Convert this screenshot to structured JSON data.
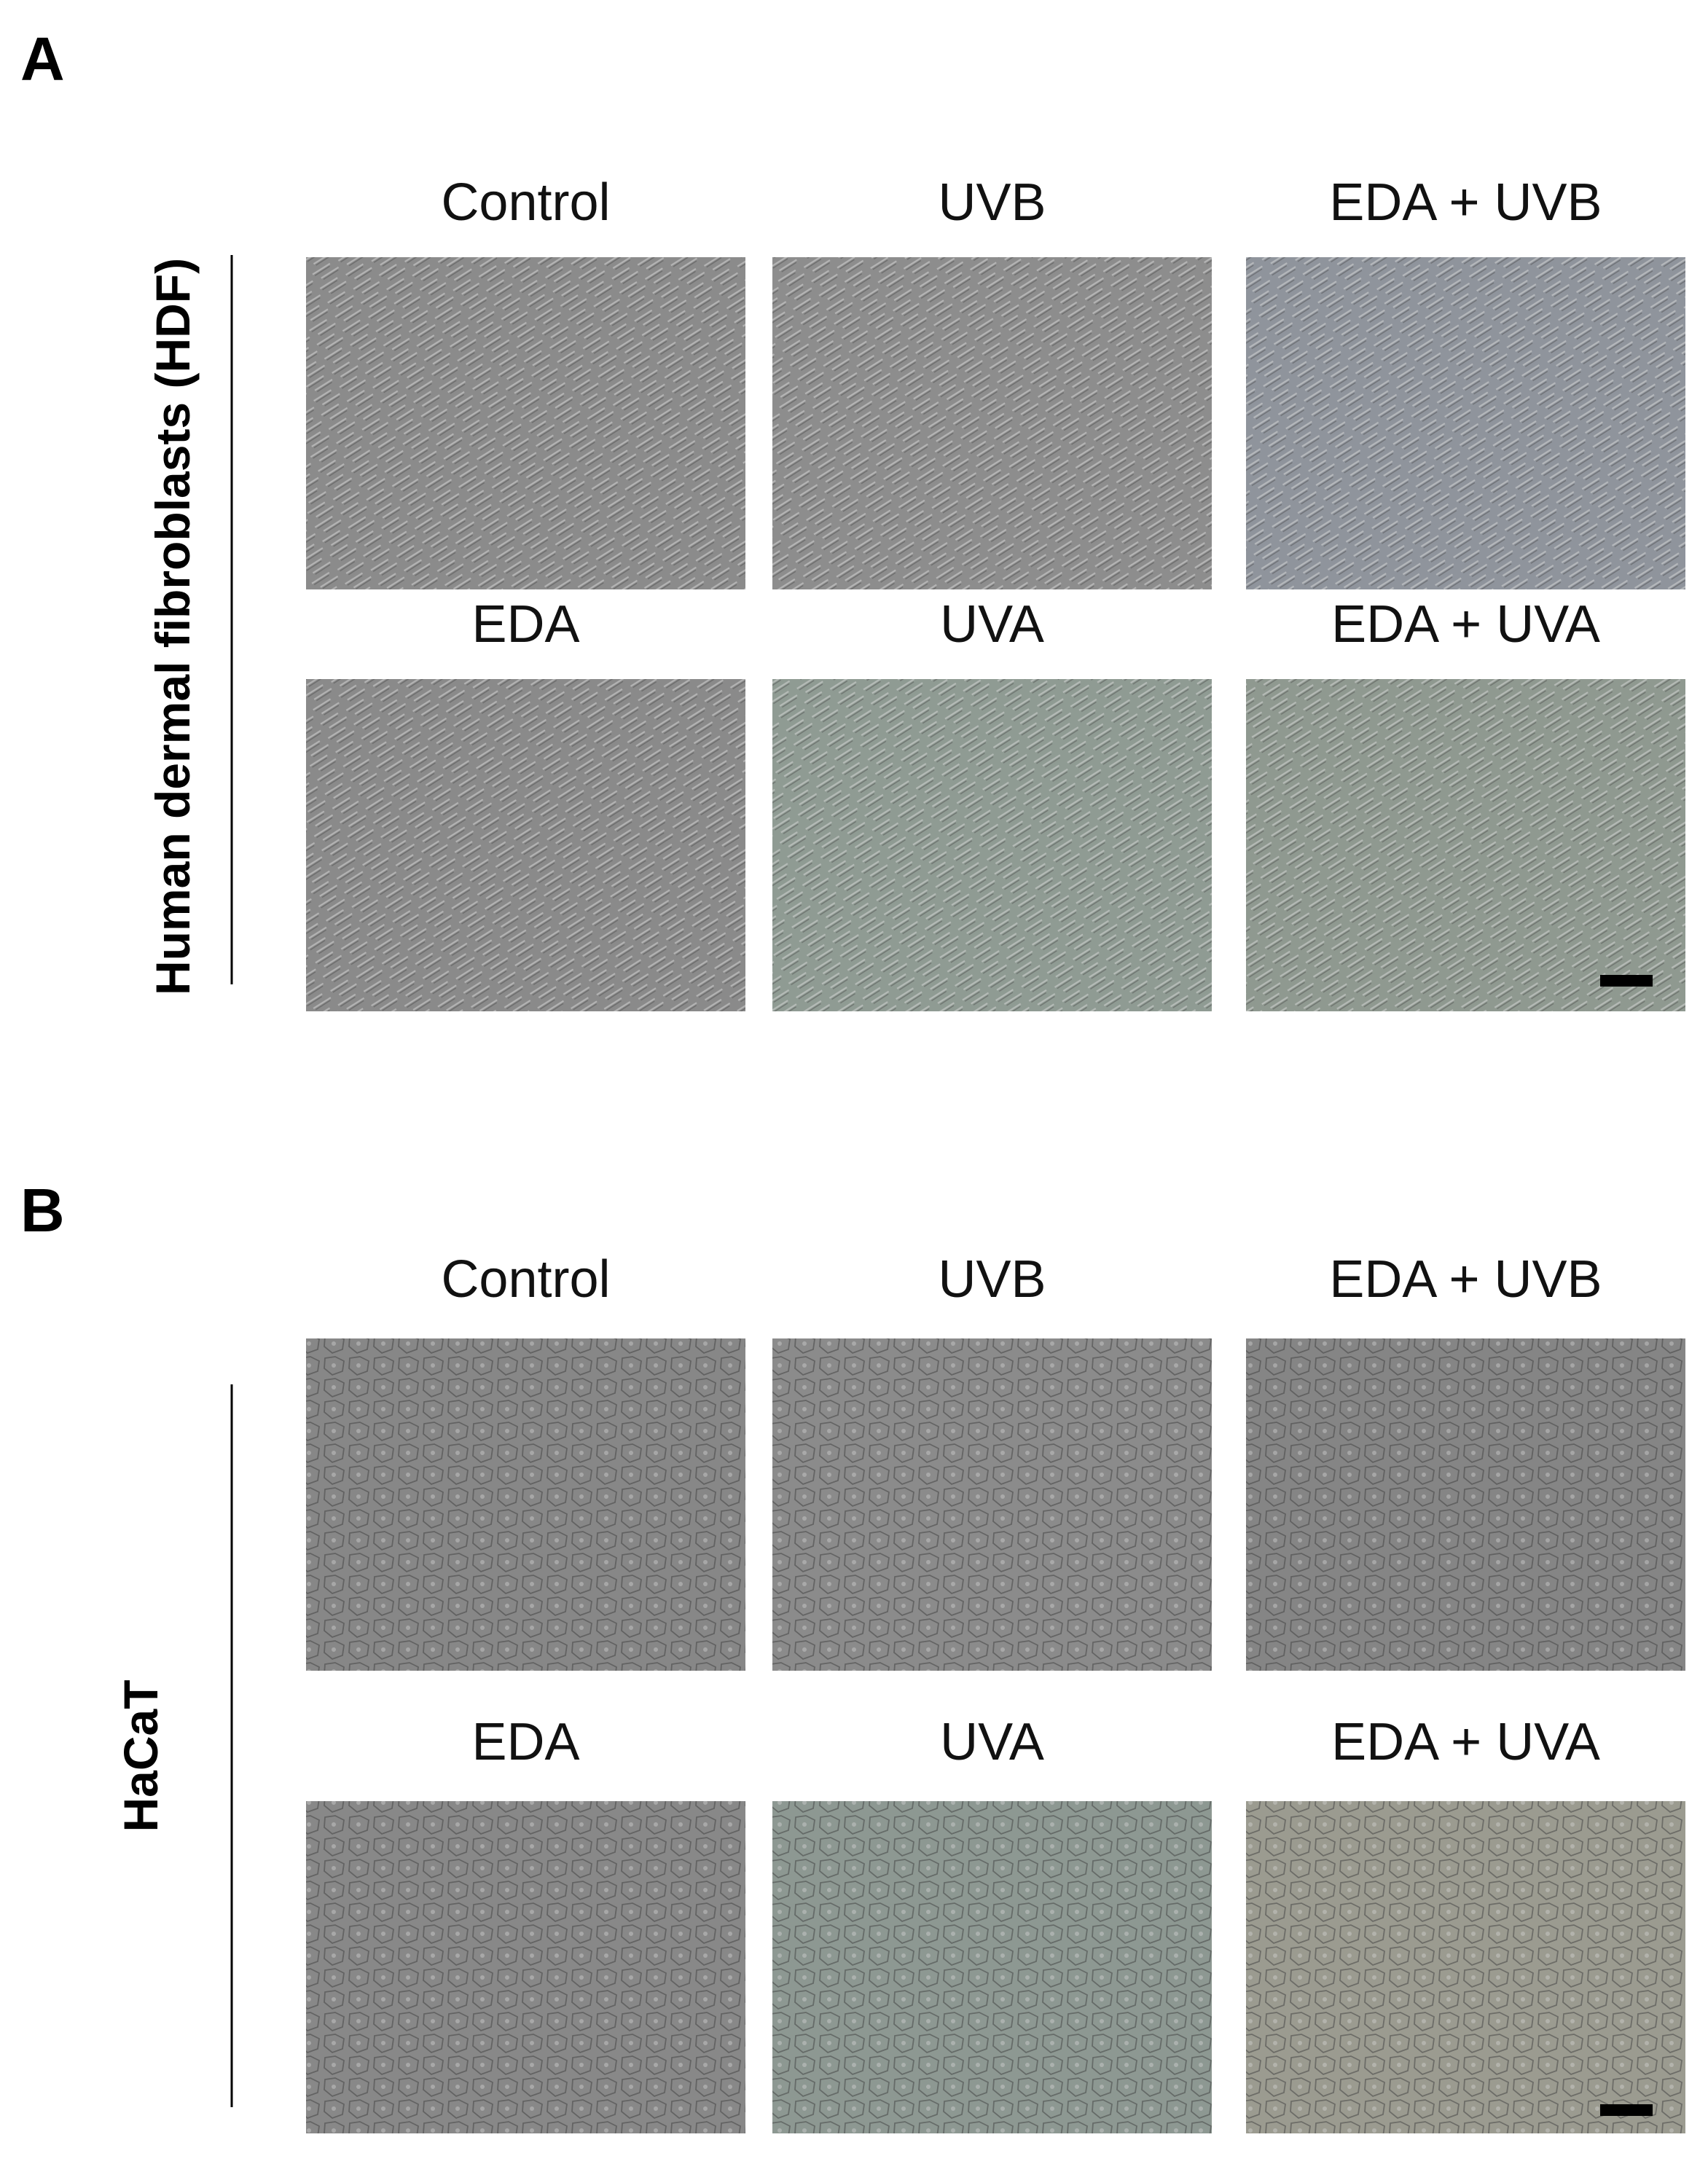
{
  "panels": [
    {
      "letter": "A",
      "row_label": "Human dermal fibroblasts (HDF)",
      "images": [
        [
          "Control",
          "UVB",
          "EDA + UVB"
        ],
        [
          "EDA",
          "UVA",
          "EDA + UVA"
        ]
      ]
    },
    {
      "letter": "B",
      "row_label": "HaCaT",
      "images": [
        [
          "Control",
          "UVB",
          "EDA + UVB"
        ],
        [
          "EDA",
          "UVA",
          "EDA + UVA"
        ]
      ]
    }
  ]
}
